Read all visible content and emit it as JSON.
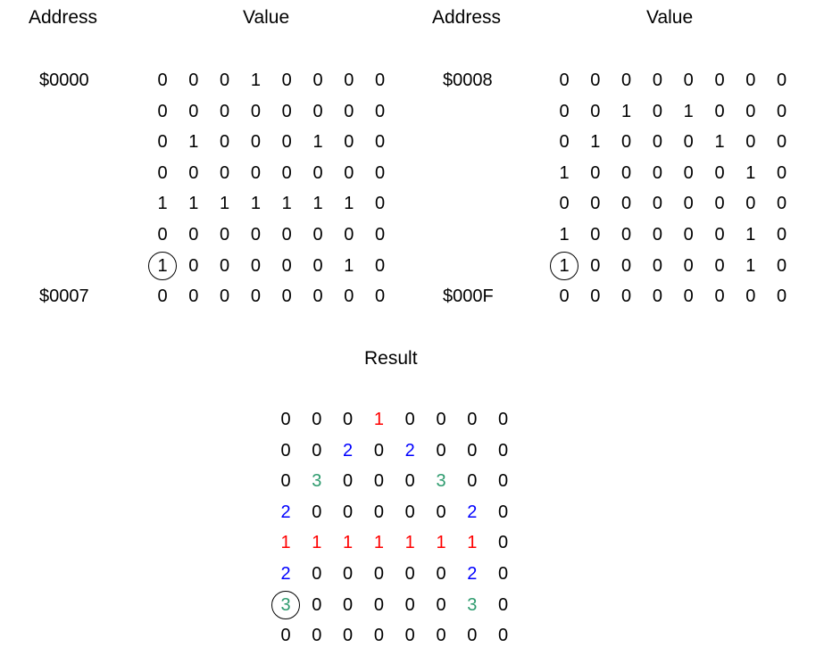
{
  "left_table": {
    "address_header": "Address",
    "value_header": "Value",
    "start_address": "$0000",
    "end_address": "$0007",
    "rows": [
      [
        0,
        0,
        0,
        1,
        0,
        0,
        0,
        0
      ],
      [
        0,
        0,
        0,
        0,
        0,
        0,
        0,
        0
      ],
      [
        0,
        1,
        0,
        0,
        0,
        1,
        0,
        0
      ],
      [
        0,
        0,
        0,
        0,
        0,
        0,
        0,
        0
      ],
      [
        1,
        1,
        1,
        1,
        1,
        1,
        1,
        0
      ],
      [
        0,
        0,
        0,
        0,
        0,
        0,
        0,
        0
      ],
      [
        1,
        0,
        0,
        0,
        0,
        0,
        1,
        0
      ],
      [
        0,
        0,
        0,
        0,
        0,
        0,
        0,
        0
      ]
    ],
    "circled_cell": [
      6,
      0
    ]
  },
  "right_table": {
    "address_header": "Address",
    "value_header": "Value",
    "start_address": "$0008",
    "end_address": "$000F",
    "rows": [
      [
        0,
        0,
        0,
        0,
        0,
        0,
        0,
        0
      ],
      [
        0,
        0,
        1,
        0,
        1,
        0,
        0,
        0
      ],
      [
        0,
        1,
        0,
        0,
        0,
        1,
        0,
        0
      ],
      [
        1,
        0,
        0,
        0,
        0,
        0,
        1,
        0
      ],
      [
        0,
        0,
        0,
        0,
        0,
        0,
        0,
        0
      ],
      [
        1,
        0,
        0,
        0,
        0,
        0,
        1,
        0
      ],
      [
        1,
        0,
        0,
        0,
        0,
        0,
        1,
        0
      ],
      [
        0,
        0,
        0,
        0,
        0,
        0,
        0,
        0
      ]
    ],
    "circled_cell": [
      6,
      0
    ]
  },
  "result": {
    "title": "Result",
    "rows": [
      [
        0,
        0,
        0,
        1,
        0,
        0,
        0,
        0
      ],
      [
        0,
        0,
        2,
        0,
        2,
        0,
        0,
        0
      ],
      [
        0,
        3,
        0,
        0,
        0,
        3,
        0,
        0
      ],
      [
        2,
        0,
        0,
        0,
        0,
        0,
        2,
        0
      ],
      [
        1,
        1,
        1,
        1,
        1,
        1,
        1,
        0
      ],
      [
        2,
        0,
        0,
        0,
        0,
        0,
        2,
        0
      ],
      [
        3,
        0,
        0,
        0,
        0,
        0,
        3,
        0
      ],
      [
        0,
        0,
        0,
        0,
        0,
        0,
        0,
        0
      ]
    ],
    "circled_cell": [
      6,
      0
    ]
  },
  "value_colors": {
    "0": "#000000",
    "1": "#ff0000",
    "2": "#0000ff",
    "3": "#2e9b6e"
  }
}
